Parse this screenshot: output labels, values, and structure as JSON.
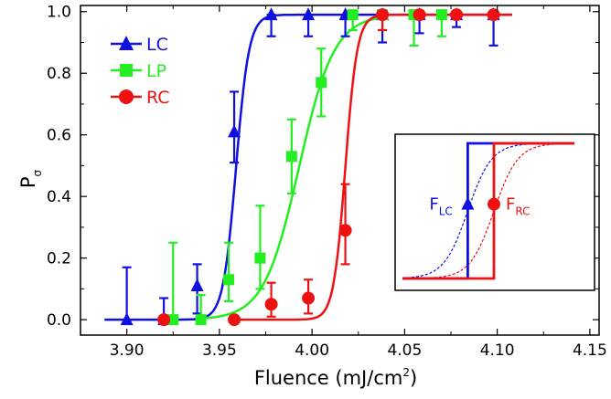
{
  "chart_data": {
    "type": "scatter",
    "xlabel_main": "Fluence (mJ/cm",
    "xlabel_sup": "2",
    "xlabel_tail": ")",
    "ylabel_main": "P",
    "ylabel_sub": "σ",
    "xlim": [
      3.875,
      4.155
    ],
    "ylim": [
      -0.05,
      1.02
    ],
    "xticks": [
      3.9,
      3.95,
      4.0,
      4.05,
      4.1,
      4.15
    ],
    "xtick_labels": [
      "3.90",
      "3.95",
      "4.00",
      "4.05",
      "4.10",
      "4.15"
    ],
    "yticks": [
      0.0,
      0.2,
      0.4,
      0.6,
      0.8,
      1.0
    ],
    "ytick_labels": [
      "0.0",
      "0.2",
      "0.4",
      "0.6",
      "0.8",
      "1.0"
    ],
    "legend_position": "top-left",
    "series": [
      {
        "name": "LC",
        "color": "#1010e0",
        "marker": "triangle",
        "fit": {
          "center": 3.959,
          "width": 0.0035,
          "x_start": 3.888,
          "x_end": 4.108
        },
        "points": [
          {
            "x": 3.9,
            "y": 0.0,
            "err": [
              0.0,
              0.17
            ]
          },
          {
            "x": 3.92,
            "y": 0.0,
            "err": [
              0.0,
              0.07
            ]
          },
          {
            "x": 3.938,
            "y": 0.11,
            "err": [
              0.09,
              0.07
            ]
          },
          {
            "x": 3.958,
            "y": 0.61,
            "err": [
              0.1,
              0.13
            ]
          },
          {
            "x": 3.978,
            "y": 0.99,
            "err": [
              0.07,
              0.0
            ]
          },
          {
            "x": 3.998,
            "y": 0.99,
            "err": [
              0.07,
              0.0
            ]
          },
          {
            "x": 4.018,
            "y": 0.99,
            "err": [
              0.07,
              0.0
            ]
          },
          {
            "x": 4.038,
            "y": 0.99,
            "err": [
              0.09,
              0.0
            ]
          },
          {
            "x": 4.058,
            "y": 0.99,
            "err": [
              0.06,
              0.0
            ]
          },
          {
            "x": 4.078,
            "y": 0.99,
            "err": [
              0.04,
              0.0
            ]
          },
          {
            "x": 4.098,
            "y": 0.99,
            "err": [
              0.1,
              0.0
            ]
          }
        ]
      },
      {
        "name": "LP",
        "color": "#22ee22",
        "marker": "square",
        "fit": {
          "center": 3.993,
          "width": 0.0095,
          "x_start": 3.94,
          "x_end": 4.038
        },
        "points": [
          {
            "x": 3.925,
            "y": 0.0,
            "err": [
              0.0,
              0.25
            ]
          },
          {
            "x": 3.94,
            "y": 0.0,
            "err": [
              0.0,
              0.08
            ]
          },
          {
            "x": 3.955,
            "y": 0.13,
            "err": [
              0.07,
              0.12
            ]
          },
          {
            "x": 3.972,
            "y": 0.2,
            "err": [
              0.1,
              0.17
            ]
          },
          {
            "x": 3.989,
            "y": 0.53,
            "err": [
              0.12,
              0.12
            ]
          },
          {
            "x": 4.005,
            "y": 0.77,
            "err": [
              0.11,
              0.11
            ]
          },
          {
            "x": 4.022,
            "y": 0.99,
            "err": [
              0.05,
              0.0
            ]
          },
          {
            "x": 4.038,
            "y": 0.99,
            "err": [
              0.05,
              0.0
            ]
          },
          {
            "x": 4.055,
            "y": 0.99,
            "err": [
              0.1,
              0.0
            ]
          },
          {
            "x": 4.07,
            "y": 0.99,
            "err": [
              0.07,
              0.0
            ]
          }
        ]
      },
      {
        "name": "RC",
        "color": "#ee1111",
        "marker": "circle",
        "fit": {
          "center": 4.018,
          "width": 0.0032,
          "x_start": 3.958,
          "x_end": 4.108
        },
        "points": [
          {
            "x": 3.92,
            "y": 0.0,
            "err": [
              0.0,
              0.0
            ]
          },
          {
            "x": 3.958,
            "y": 0.0,
            "err": [
              0.0,
              0.0
            ]
          },
          {
            "x": 3.978,
            "y": 0.05,
            "err": [
              0.04,
              0.07
            ]
          },
          {
            "x": 3.998,
            "y": 0.07,
            "err": [
              0.05,
              0.06
            ]
          },
          {
            "x": 4.018,
            "y": 0.29,
            "err": [
              0.11,
              0.15
            ]
          },
          {
            "x": 4.038,
            "y": 0.99,
            "err": [
              0.05,
              0.0
            ]
          },
          {
            "x": 4.058,
            "y": 0.99,
            "err": [
              0.0,
              0.0
            ]
          },
          {
            "x": 4.078,
            "y": 0.99,
            "err": [
              0.0,
              0.0
            ]
          },
          {
            "x": 4.098,
            "y": 0.99,
            "err": [
              0.0,
              0.0
            ]
          }
        ]
      }
    ],
    "inset": {
      "description_free": true,
      "labels": [
        {
          "main": "F",
          "sub": "LC",
          "color": "#1010e0"
        },
        {
          "main": "F",
          "sub": "RC",
          "color": "#ee1111"
        }
      ],
      "step_left_at": 0.3,
      "step_right_at": 0.5,
      "marker_level": 0.55
    }
  }
}
